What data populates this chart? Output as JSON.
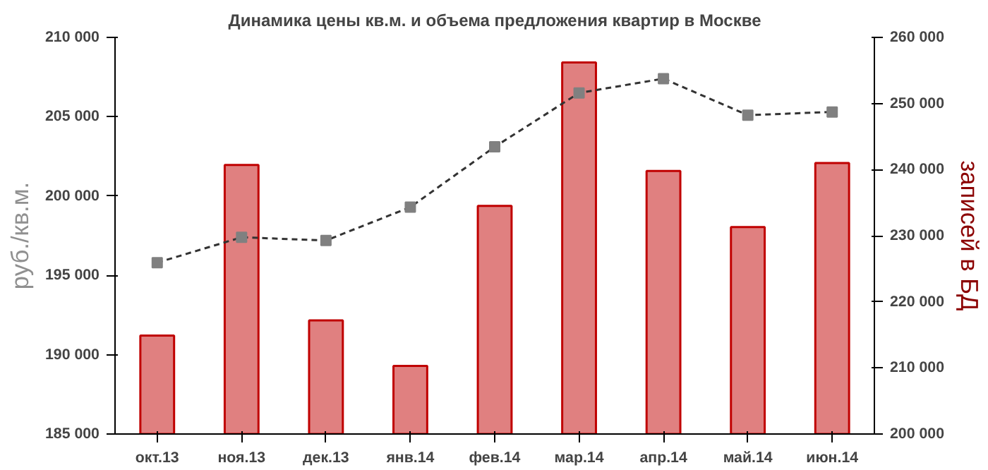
{
  "chart_data": {
    "type": "bar",
    "title": "Динамика цены кв.м. и объема предложения квартир в Москве",
    "categories": [
      "окт.13",
      "ноя.13",
      "дек.13",
      "янв.14",
      "фев.14",
      "мар.14",
      "апр.14",
      "май.14",
      "июн.14"
    ],
    "ylabel": "руб./кв.м.",
    "y2label": "записей в БД",
    "ylim": [
      185000,
      210000
    ],
    "yticks": [
      {
        "value": 185000,
        "label": "185 000"
      },
      {
        "value": 190000,
        "label": "190 000"
      },
      {
        "value": 195000,
        "label": "195 000"
      },
      {
        "value": 200000,
        "label": "200 000"
      },
      {
        "value": 205000,
        "label": "205 000"
      },
      {
        "value": 210000,
        "label": "210 000"
      }
    ],
    "y2lim": [
      200000,
      260000
    ],
    "y2ticks": [
      {
        "value": 200000,
        "label": "200 000"
      },
      {
        "value": 210000,
        "label": "210 000"
      },
      {
        "value": 220000,
        "label": "220 000"
      },
      {
        "value": 230000,
        "label": "230 000"
      },
      {
        "value": 240000,
        "label": "240 000"
      },
      {
        "value": 250000,
        "label": "250 000"
      },
      {
        "value": 260000,
        "label": "260 000"
      }
    ],
    "grid": false,
    "series": [
      {
        "axis": "y2",
        "color": "#e08080",
        "values": [
          214900,
          240700,
          217200,
          210300,
          234500,
          256200,
          239800,
          231300,
          241000
        ]
      },
      {
        "type": "line",
        "axis": "y",
        "color": "#333333",
        "marker": "square",
        "line_style": "dashed",
        "values": [
          195800,
          197400,
          197200,
          199300,
          203100,
          206500,
          207400,
          205100,
          205300
        ]
      }
    ]
  }
}
